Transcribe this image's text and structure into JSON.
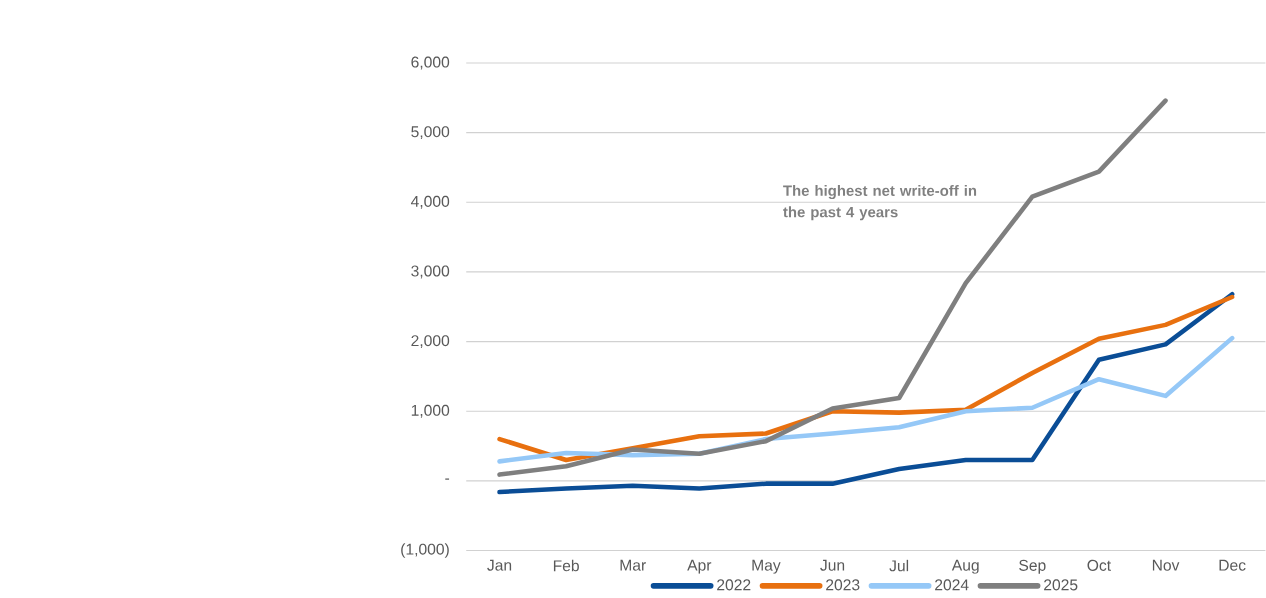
{
  "chart_data": {
    "type": "line",
    "categories": [
      "Jan",
      "Feb",
      "Mar",
      "Apr",
      "May",
      "Jun",
      "Jul",
      "Aug",
      "Sep",
      "Oct",
      "Nov",
      "Dec"
    ],
    "series": [
      {
        "name": "2022",
        "color": "#0a4d96",
        "values": [
          -160,
          -110,
          -70,
          -110,
          -40,
          -40,
          170,
          300,
          300,
          1740,
          1960,
          2680
        ]
      },
      {
        "name": "2023",
        "color": "#e8700f",
        "values": [
          600,
          300,
          470,
          640,
          680,
          1000,
          980,
          1020,
          1550,
          2040,
          2240,
          2640
        ]
      },
      {
        "name": "2024",
        "color": "#95c8f7",
        "values": [
          280,
          400,
          370,
          390,
          600,
          680,
          770,
          1000,
          1050,
          1460,
          1220,
          2050
        ]
      },
      {
        "name": "2025",
        "color": "#7f7f7f",
        "values": [
          90,
          210,
          450,
          390,
          570,
          1040,
          1190,
          2840,
          4080,
          4440,
          5460,
          null
        ]
      }
    ],
    "ylim": [
      -1000,
      6000
    ],
    "yticks": [
      {
        "value": -1000,
        "label": "(1,000)"
      },
      {
        "value": 0,
        "label": "-"
      },
      {
        "value": 1000,
        "label": "1,000"
      },
      {
        "value": 2000,
        "label": "2,000"
      },
      {
        "value": 3000,
        "label": "3,000"
      },
      {
        "value": 4000,
        "label": "4,000"
      },
      {
        "value": 5000,
        "label": "5,000"
      },
      {
        "value": 6000,
        "label": "6,000"
      }
    ],
    "grid": "y",
    "legend": "bottom",
    "marker": "none",
    "line_style": "solid",
    "annotations": [
      "The highest net write-off in the past 4 years"
    ]
  }
}
